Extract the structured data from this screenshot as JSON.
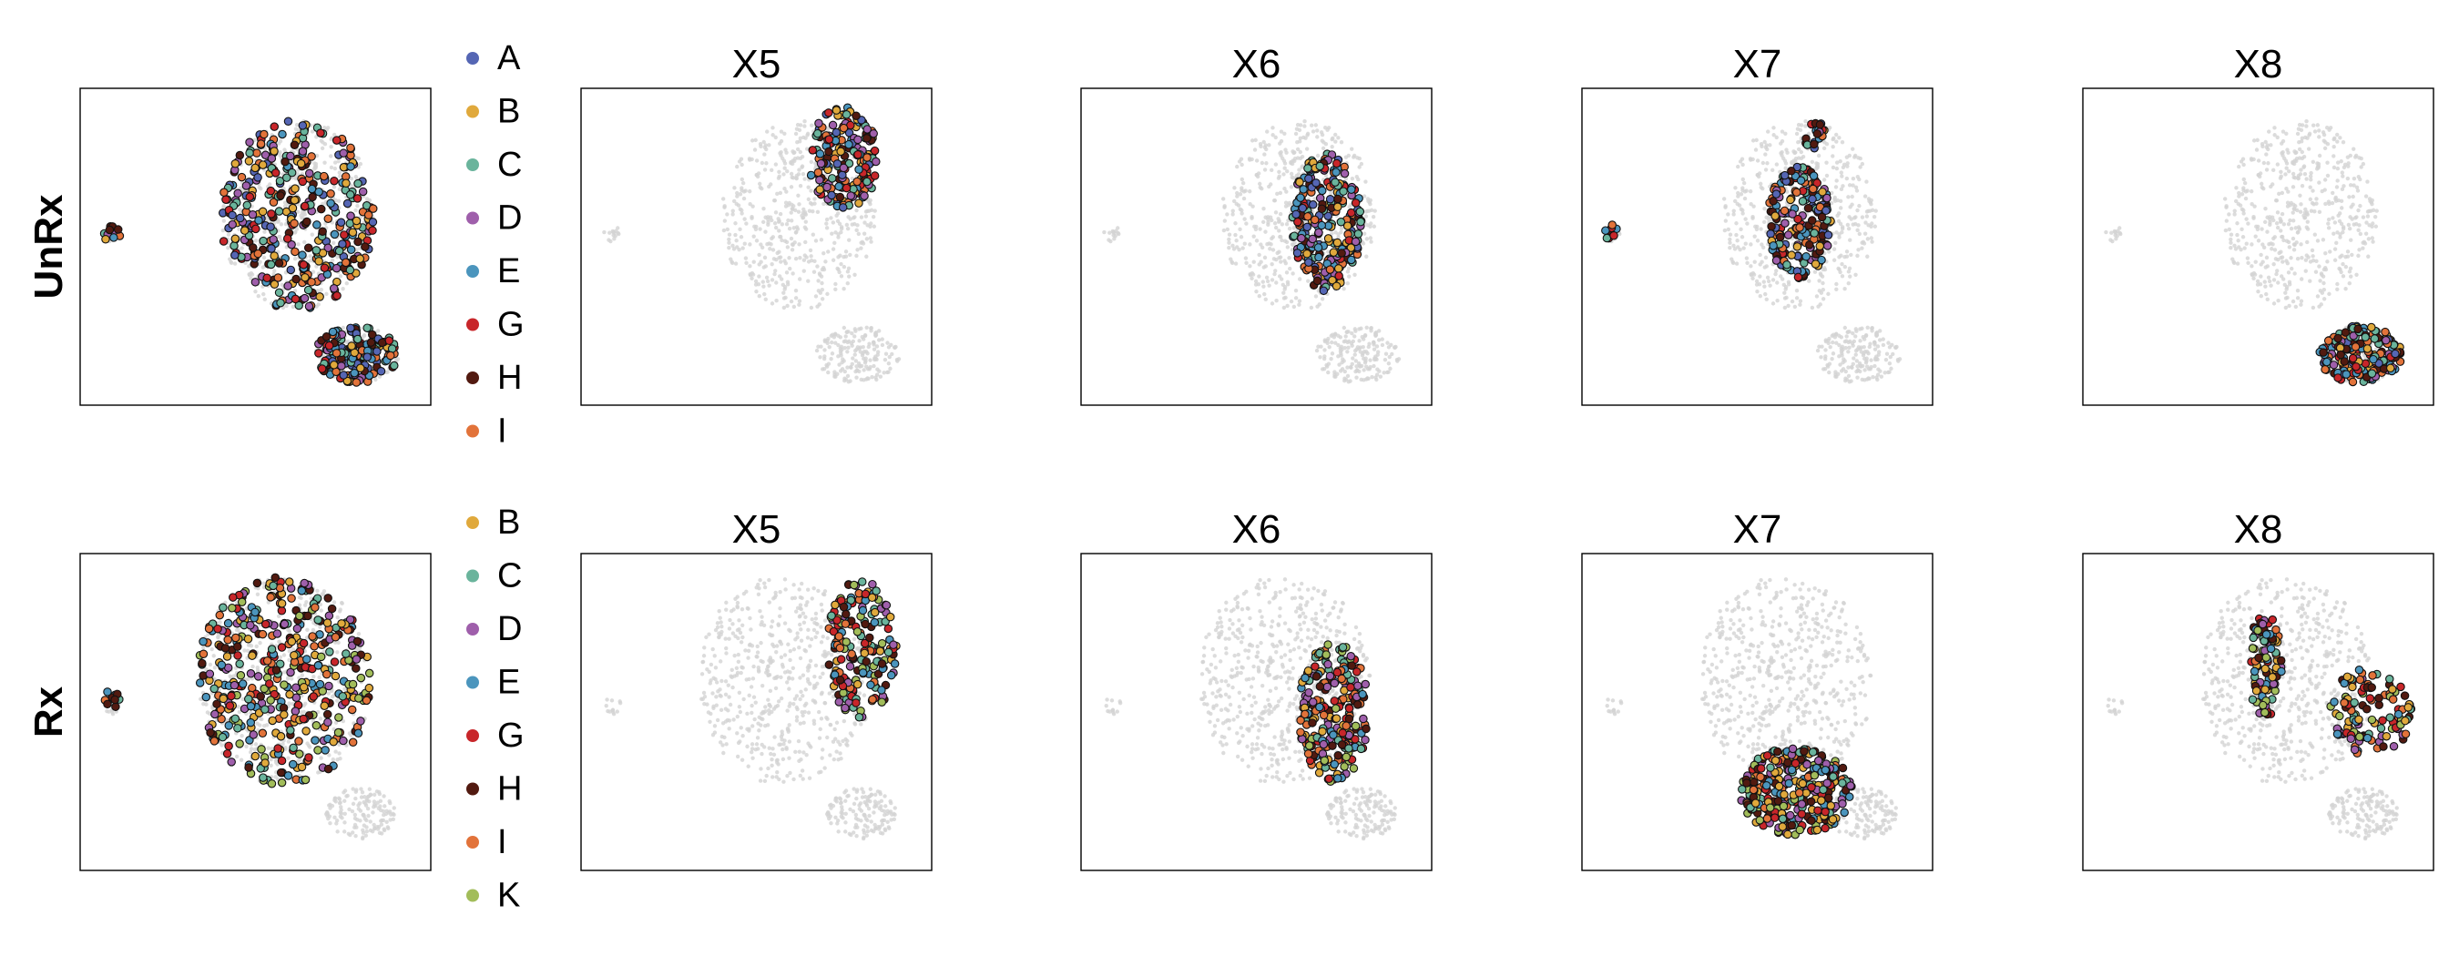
{
  "figure": {
    "rows": [
      {
        "label": "UnRx",
        "legend": [
          {
            "key": "A",
            "color": "#5566b4"
          },
          {
            "key": "B",
            "color": "#e0a93c"
          },
          {
            "key": "C",
            "color": "#6ab49c"
          },
          {
            "key": "D",
            "color": "#9f5fab"
          },
          {
            "key": "E",
            "color": "#4b95bd"
          },
          {
            "key": "G",
            "color": "#c8262a"
          },
          {
            "key": "H",
            "color": "#521a10"
          },
          {
            "key": "I",
            "color": "#e2733a"
          }
        ]
      },
      {
        "label": "Rx",
        "legend": [
          {
            "key": "B",
            "color": "#e0a93c"
          },
          {
            "key": "C",
            "color": "#6ab49c"
          },
          {
            "key": "D",
            "color": "#9f5fab"
          },
          {
            "key": "E",
            "color": "#4b95bd"
          },
          {
            "key": "G",
            "color": "#c8262a"
          },
          {
            "key": "H",
            "color": "#521a10"
          },
          {
            "key": "I",
            "color": "#e2733a"
          },
          {
            "key": "K",
            "color": "#a2bd5a"
          }
        ]
      }
    ]
  },
  "chart_data": [
    {
      "type": "scatter",
      "row": "UnRx",
      "title": "",
      "highlight": "all",
      "background_color": "#d3d3d3",
      "outline_color": "#000000"
    },
    {
      "type": "scatter",
      "row": "UnRx",
      "title": "X5",
      "highlight": "upper-right arc of main cluster",
      "background_color": "#d3d3d3"
    },
    {
      "type": "scatter",
      "row": "UnRx",
      "title": "X6",
      "highlight": "central diagonal band of main cluster",
      "background_color": "#d3d3d3"
    },
    {
      "type": "scatter",
      "row": "UnRx",
      "title": "X7",
      "highlight": "left part of main cluster and small left island",
      "background_color": "#d3d3d3"
    },
    {
      "type": "scatter",
      "row": "UnRx",
      "title": "X8",
      "highlight": "lower-right cluster",
      "background_color": "#d3d3d3"
    },
    {
      "type": "scatter",
      "row": "Rx",
      "title": "",
      "highlight": "all",
      "background_color": "#d3d3d3",
      "outline_color": "#000000"
    },
    {
      "type": "scatter",
      "row": "Rx",
      "title": "X5",
      "highlight": "upper-right arc of main cluster",
      "background_color": "#d3d3d3"
    },
    {
      "type": "scatter",
      "row": "Rx",
      "title": "X6",
      "highlight": "central-right band of main cluster",
      "background_color": "#d3d3d3"
    },
    {
      "type": "scatter",
      "row": "Rx",
      "title": "X7",
      "highlight": "lower lobe of main cluster",
      "background_color": "#d3d3d3"
    },
    {
      "type": "scatter",
      "row": "Rx",
      "title": "X8",
      "highlight": "left edge and right arc of main cluster",
      "background_color": "#d3d3d3"
    }
  ]
}
